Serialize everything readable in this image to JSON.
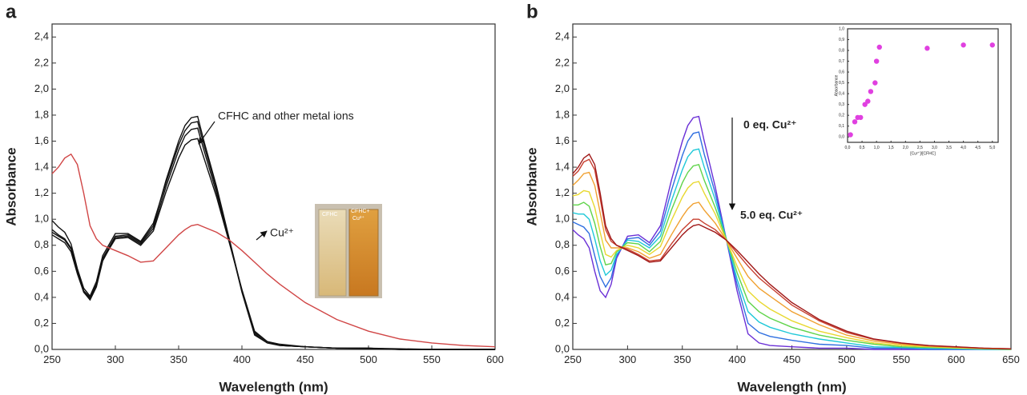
{
  "chart_data": [
    {
      "type": "line",
      "panel_label": "a",
      "xlabel": "Wavelength (nm)",
      "ylabel": "Absorbance",
      "xlim": [
        250,
        600
      ],
      "ylim": [
        0,
        2.5
      ],
      "xticks": [
        250,
        300,
        350,
        400,
        450,
        500,
        550,
        600
      ],
      "yticks": [
        {
          "value": 0,
          "label": "0,0"
        },
        {
          "value": 0.2,
          "label": "0,2"
        },
        {
          "value": 0.4,
          "label": "0,4"
        },
        {
          "value": 0.6,
          "label": "0,6"
        },
        {
          "value": 0.8,
          "label": "0,8"
        },
        {
          "value": 1.0,
          "label": "1,0"
        },
        {
          "value": 1.2,
          "label": "1,2"
        },
        {
          "value": 1.4,
          "label": "1,4"
        },
        {
          "value": 1.6,
          "label": "1,6"
        },
        {
          "value": 1.8,
          "label": "1,8"
        },
        {
          "value": 2.0,
          "label": "2,0"
        },
        {
          "value": 2.2,
          "label": "2,2"
        },
        {
          "value": 2.4,
          "label": "2,4"
        }
      ],
      "x": [
        250,
        255,
        260,
        265,
        270,
        275,
        280,
        285,
        290,
        300,
        310,
        320,
        330,
        340,
        350,
        355,
        360,
        365,
        370,
        380,
        390,
        400,
        410,
        420,
        430,
        450,
        475,
        500,
        525,
        550,
        575,
        600
      ],
      "series": [
        {
          "color": "#111111",
          "values": [
            0.92,
            0.88,
            0.85,
            0.78,
            0.6,
            0.45,
            0.4,
            0.5,
            0.7,
            0.87,
            0.88,
            0.82,
            0.95,
            1.3,
            1.6,
            1.72,
            1.78,
            1.79,
            1.6,
            1.25,
            0.85,
            0.45,
            0.12,
            0.05,
            0.03,
            0.02,
            0.01,
            0.01,
            0,
            0,
            0,
            0
          ]
        },
        {
          "color": "#111111",
          "values": [
            0.9,
            0.87,
            0.84,
            0.77,
            0.59,
            0.44,
            0.38,
            0.48,
            0.68,
            0.86,
            0.87,
            0.81,
            0.93,
            1.25,
            1.53,
            1.64,
            1.69,
            1.7,
            1.53,
            1.2,
            0.83,
            0.45,
            0.13,
            0.06,
            0.03,
            0.02,
            0.01,
            0.01,
            0,
            0,
            0,
            0
          ]
        },
        {
          "color": "#111111",
          "values": [
            0.88,
            0.85,
            0.82,
            0.75,
            0.58,
            0.44,
            0.39,
            0.49,
            0.69,
            0.85,
            0.86,
            0.8,
            0.91,
            1.21,
            1.47,
            1.57,
            1.61,
            1.62,
            1.47,
            1.17,
            0.82,
            0.46,
            0.14,
            0.06,
            0.04,
            0.02,
            0.01,
            0.01,
            0.005,
            0,
            0,
            0
          ]
        },
        {
          "color": "#111111",
          "values": [
            0.99,
            0.94,
            0.9,
            0.81,
            0.62,
            0.47,
            0.41,
            0.52,
            0.72,
            0.89,
            0.89,
            0.83,
            0.97,
            1.28,
            1.57,
            1.68,
            1.74,
            1.75,
            1.57,
            1.23,
            0.84,
            0.44,
            0.11,
            0.05,
            0.03,
            0.02,
            0.01,
            0.005,
            0,
            0,
            0,
            0
          ]
        },
        {
          "color": "#d04545",
          "values": [
            1.35,
            1.4,
            1.47,
            1.5,
            1.42,
            1.2,
            0.95,
            0.85,
            0.8,
            0.76,
            0.72,
            0.67,
            0.68,
            0.78,
            0.88,
            0.92,
            0.95,
            0.96,
            0.94,
            0.9,
            0.84,
            0.76,
            0.67,
            0.58,
            0.5,
            0.36,
            0.23,
            0.14,
            0.08,
            0.05,
            0.03,
            0.02
          ]
        }
      ],
      "annotations": [
        "CFHC and other metal ions",
        "Cu²⁺"
      ],
      "photo_labels": [
        "CFHC",
        "CFHC+",
        "Cu²⁺"
      ]
    },
    {
      "type": "line",
      "panel_label": "b",
      "xlabel": "Wavelength (nm)",
      "ylabel": "Absorbance",
      "xlim": [
        250,
        650
      ],
      "ylim": [
        0,
        2.5
      ],
      "xticks": [
        250,
        300,
        350,
        400,
        450,
        500,
        550,
        600,
        650
      ],
      "yticks": [
        {
          "value": 0,
          "label": "0,0"
        },
        {
          "value": 0.2,
          "label": "0,2"
        },
        {
          "value": 0.4,
          "label": "0,4"
        },
        {
          "value": 0.6,
          "label": "0,6"
        },
        {
          "value": 0.8,
          "label": "0,8"
        },
        {
          "value": 1.0,
          "label": "1,0"
        },
        {
          "value": 1.2,
          "label": "1,2"
        },
        {
          "value": 1.4,
          "label": "1,4"
        },
        {
          "value": 1.6,
          "label": "1,6"
        },
        {
          "value": 1.8,
          "label": "1,8"
        },
        {
          "value": 2.0,
          "label": "2,0"
        },
        {
          "value": 2.2,
          "label": "2,2"
        },
        {
          "value": 2.4,
          "label": "2,4"
        }
      ],
      "x": [
        250,
        255,
        260,
        265,
        270,
        275,
        280,
        285,
        290,
        300,
        310,
        320,
        330,
        340,
        350,
        355,
        360,
        365,
        370,
        380,
        390,
        400,
        410,
        420,
        430,
        450,
        475,
        500,
        525,
        550,
        575,
        600,
        625,
        650
      ],
      "series": [
        {
          "color": "#6a2fd6",
          "values": [
            0.92,
            0.88,
            0.85,
            0.78,
            0.6,
            0.45,
            0.4,
            0.5,
            0.7,
            0.87,
            0.88,
            0.82,
            0.95,
            1.3,
            1.6,
            1.72,
            1.78,
            1.79,
            1.6,
            1.25,
            0.85,
            0.45,
            0.12,
            0.05,
            0.03,
            0.02,
            0.01,
            0.01,
            0,
            0,
            0,
            0,
            0,
            0
          ]
        },
        {
          "color": "#2f6fe0",
          "values": [
            0.98,
            0.96,
            0.94,
            0.89,
            0.72,
            0.56,
            0.48,
            0.55,
            0.72,
            0.85,
            0.86,
            0.8,
            0.91,
            1.22,
            1.49,
            1.6,
            1.66,
            1.67,
            1.5,
            1.2,
            0.85,
            0.5,
            0.2,
            0.13,
            0.1,
            0.07,
            0.04,
            0.03,
            0.01,
            0.01,
            0,
            0,
            0,
            0
          ]
        },
        {
          "color": "#1fc8d8",
          "values": [
            1.05,
            1.04,
            1.04,
            1.0,
            0.85,
            0.68,
            0.57,
            0.61,
            0.73,
            0.84,
            0.83,
            0.78,
            0.87,
            1.14,
            1.38,
            1.48,
            1.53,
            1.54,
            1.4,
            1.15,
            0.85,
            0.54,
            0.29,
            0.21,
            0.17,
            0.12,
            0.08,
            0.05,
            0.02,
            0.015,
            0.01,
            0.005,
            0,
            0
          ]
        },
        {
          "color": "#5fd44a",
          "values": [
            1.11,
            1.11,
            1.13,
            1.1,
            0.97,
            0.79,
            0.65,
            0.66,
            0.75,
            0.82,
            0.81,
            0.75,
            0.83,
            1.07,
            1.28,
            1.36,
            1.41,
            1.42,
            1.3,
            1.09,
            0.85,
            0.59,
            0.37,
            0.29,
            0.24,
            0.17,
            0.11,
            0.07,
            0.04,
            0.02,
            0.015,
            0.01,
            0.005,
            0
          ]
        },
        {
          "color": "#e8d830",
          "values": [
            1.18,
            1.19,
            1.22,
            1.21,
            1.09,
            0.9,
            0.73,
            0.71,
            0.76,
            0.8,
            0.78,
            0.73,
            0.79,
            0.99,
            1.17,
            1.24,
            1.28,
            1.29,
            1.2,
            1.04,
            0.84,
            0.64,
            0.45,
            0.37,
            0.31,
            0.22,
            0.14,
            0.09,
            0.05,
            0.03,
            0.02,
            0.012,
            0.006,
            0.003
          ]
        },
        {
          "color": "#f0a030",
          "values": [
            1.26,
            1.3,
            1.35,
            1.36,
            1.26,
            1.05,
            0.84,
            0.78,
            0.78,
            0.78,
            0.75,
            0.7,
            0.73,
            0.88,
            1.02,
            1.08,
            1.12,
            1.13,
            1.07,
            0.97,
            0.84,
            0.7,
            0.56,
            0.47,
            0.41,
            0.29,
            0.19,
            0.11,
            0.064,
            0.04,
            0.024,
            0.016,
            0.008,
            0.004
          ]
        },
        {
          "color": "#c84030",
          "values": [
            1.33,
            1.37,
            1.44,
            1.46,
            1.38,
            1.16,
            0.92,
            0.83,
            0.8,
            0.77,
            0.73,
            0.68,
            0.69,
            0.81,
            0.92,
            0.96,
            1.0,
            1.0,
            0.97,
            0.92,
            0.84,
            0.74,
            0.64,
            0.55,
            0.48,
            0.34,
            0.22,
            0.13,
            0.076,
            0.048,
            0.029,
            0.019,
            0.01,
            0.005
          ]
        },
        {
          "color": "#a01818",
          "values": [
            1.35,
            1.4,
            1.47,
            1.5,
            1.42,
            1.2,
            0.95,
            0.85,
            0.8,
            0.76,
            0.72,
            0.67,
            0.68,
            0.78,
            0.88,
            0.92,
            0.95,
            0.96,
            0.94,
            0.9,
            0.84,
            0.76,
            0.67,
            0.58,
            0.5,
            0.36,
            0.23,
            0.14,
            0.08,
            0.05,
            0.03,
            0.02,
            0.01,
            0.005
          ]
        }
      ],
      "annotations": [
        "0 eq. Cu²⁺",
        "5.0 eq. Cu²⁺"
      ]
    },
    {
      "type": "scatter",
      "xlabel": "[Cu²⁺]/[CFHC]",
      "ylabel": "Absorbance",
      "color": "#e040e0",
      "xlim": [
        0,
        5.2
      ],
      "ylim": [
        -0.05,
        1.0
      ],
      "xticks": [
        {
          "value": 0,
          "label": "0,0"
        },
        {
          "value": 0.5,
          "label": "0,5"
        },
        {
          "value": 1.0,
          "label": "1,0"
        },
        {
          "value": 1.5,
          "label": "1,5"
        },
        {
          "value": 2.0,
          "label": "2,0"
        },
        {
          "value": 2.5,
          "label": "2,5"
        },
        {
          "value": 3.0,
          "label": "3,0"
        },
        {
          "value": 3.5,
          "label": "3,5"
        },
        {
          "value": 4.0,
          "label": "4,0"
        },
        {
          "value": 4.5,
          "label": "4,5"
        },
        {
          "value": 5.0,
          "label": "5,0"
        }
      ],
      "yticks": [
        {
          "value": 0,
          "label": "0,0"
        },
        {
          "value": 0.1,
          "label": "0,1"
        },
        {
          "value": 0.2,
          "label": "0,2"
        },
        {
          "value": 0.3,
          "label": "0,3"
        },
        {
          "value": 0.4,
          "label": "0,4"
        },
        {
          "value": 0.5,
          "label": "0,5"
        },
        {
          "value": 0.6,
          "label": "0,6"
        },
        {
          "value": 0.7,
          "label": "0,7"
        },
        {
          "value": 0.8,
          "label": "0,8"
        },
        {
          "value": 0.9,
          "label": "0,9"
        },
        {
          "value": 1.0,
          "label": "1,0"
        }
      ],
      "x": [
        0.1,
        0.25,
        0.35,
        0.45,
        0.6,
        0.7,
        0.8,
        0.95,
        1.0,
        1.1,
        2.75,
        4.0,
        5.0
      ],
      "values": [
        0.02,
        0.14,
        0.18,
        0.18,
        0.3,
        0.33,
        0.42,
        0.5,
        0.7,
        0.83,
        0.82,
        0.85,
        0.85
      ]
    }
  ]
}
